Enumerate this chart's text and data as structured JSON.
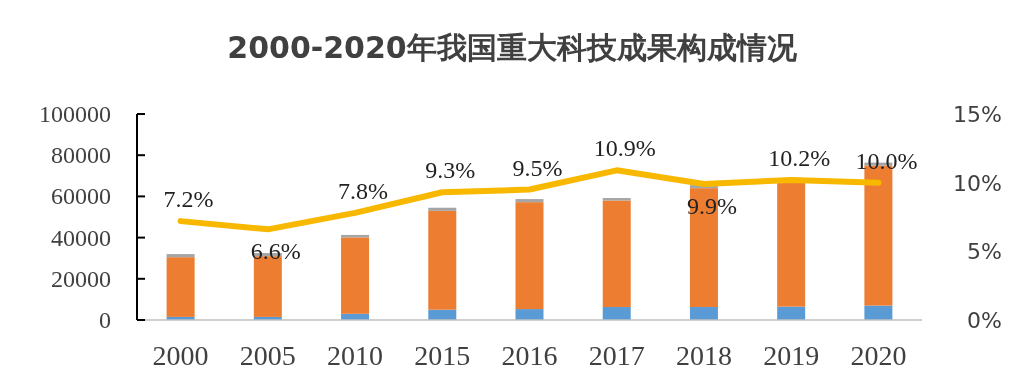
{
  "chart_data": {
    "type": "bar",
    "title": "2000-2020年我国重大科技成果构成情况",
    "categories": [
      "2000",
      "2005",
      "2010",
      "2015",
      "2016",
      "2017",
      "2018",
      "2019",
      "2020"
    ],
    "stacked": true,
    "series": [
      {
        "color": "#5b9bd5",
        "values": [
          1500,
          1500,
          3000,
          5000,
          5300,
          6300,
          6300,
          6500,
          7000
        ]
      },
      {
        "color": "#ed7d31",
        "values": [
          29000,
          29500,
          37100,
          48000,
          51900,
          51700,
          57700,
          60000,
          68000
        ]
      },
      {
        "color": "#a5a5a5",
        "values": [
          1500,
          1500,
          1200,
          1500,
          1500,
          1200,
          1500,
          null,
          1400
        ]
      },
      {
        "type": "line",
        "axis": "y2",
        "color": "#f8b800",
        "values": [
          7.2,
          6.6,
          7.8,
          9.3,
          9.5,
          10.9,
          9.9,
          10.2,
          10.0
        ],
        "value_labels": [
          "7.2%",
          "6.6%",
          "7.8%",
          "9.3%",
          "9.5%",
          "10.9%",
          "9.9%",
          "10.2%",
          "10.0%"
        ]
      }
    ],
    "ylim": [
      0,
      100000
    ],
    "yticks": [
      0,
      20000,
      40000,
      60000,
      80000,
      100000
    ],
    "y2lim": [
      0,
      15
    ],
    "y2ticks": [
      {
        "value": 0,
        "label": "0%"
      },
      {
        "value": 5,
        "label": "5%"
      },
      {
        "value": 10,
        "label": "10%"
      },
      {
        "value": 15,
        "label": "15%"
      }
    ],
    "grid": false
  }
}
